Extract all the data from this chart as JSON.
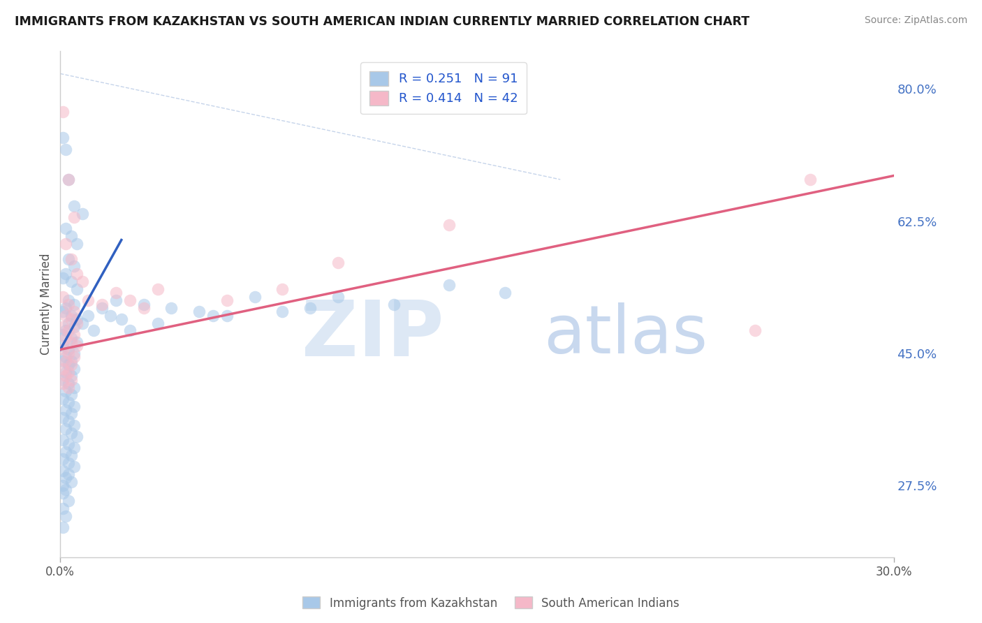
{
  "title": "IMMIGRANTS FROM KAZAKHSTAN VS SOUTH AMERICAN INDIAN CURRENTLY MARRIED CORRELATION CHART",
  "source": "Source: ZipAtlas.com",
  "xlabel_bottom_left": "0.0%",
  "xlabel_bottom_right": "30.0%",
  "ylabel": "Currently Married",
  "y_ticks": [
    "27.5%",
    "45.0%",
    "62.5%",
    "80.0%"
  ],
  "y_tick_vals": [
    0.275,
    0.45,
    0.625,
    0.8
  ],
  "legend1_color": "#a8c8e8",
  "legend2_color": "#f5b8c8",
  "line1_color": "#3060c0",
  "line2_color": "#e06080",
  "diagonal_color": "#c0d0e8",
  "watermark_zip": "ZIP",
  "watermark_atlas": "atlas",
  "background_color": "#ffffff",
  "grid_color": "#dde8f0",
  "legend_label1": "Immigrants from Kazakhstan",
  "legend_label2": "South American Indians",
  "xlim": [
    0.0,
    0.3
  ],
  "ylim": [
    0.18,
    0.85
  ],
  "blue_scatter": [
    [
      0.001,
      0.735
    ],
    [
      0.002,
      0.72
    ],
    [
      0.003,
      0.68
    ],
    [
      0.005,
      0.645
    ],
    [
      0.008,
      0.635
    ],
    [
      0.002,
      0.615
    ],
    [
      0.004,
      0.605
    ],
    [
      0.006,
      0.595
    ],
    [
      0.003,
      0.575
    ],
    [
      0.005,
      0.565
    ],
    [
      0.002,
      0.555
    ],
    [
      0.001,
      0.55
    ],
    [
      0.004,
      0.545
    ],
    [
      0.006,
      0.535
    ],
    [
      0.003,
      0.52
    ],
    [
      0.005,
      0.515
    ],
    [
      0.002,
      0.51
    ],
    [
      0.001,
      0.505
    ],
    [
      0.004,
      0.5
    ],
    [
      0.006,
      0.495
    ],
    [
      0.003,
      0.49
    ],
    [
      0.005,
      0.485
    ],
    [
      0.002,
      0.48
    ],
    [
      0.001,
      0.475
    ],
    [
      0.004,
      0.47
    ],
    [
      0.006,
      0.465
    ],
    [
      0.001,
      0.46
    ],
    [
      0.003,
      0.455
    ],
    [
      0.005,
      0.45
    ],
    [
      0.002,
      0.445
    ],
    [
      0.004,
      0.44
    ],
    [
      0.001,
      0.44
    ],
    [
      0.003,
      0.435
    ],
    [
      0.005,
      0.43
    ],
    [
      0.002,
      0.425
    ],
    [
      0.004,
      0.42
    ],
    [
      0.001,
      0.415
    ],
    [
      0.003,
      0.41
    ],
    [
      0.005,
      0.405
    ],
    [
      0.002,
      0.4
    ],
    [
      0.004,
      0.395
    ],
    [
      0.001,
      0.39
    ],
    [
      0.003,
      0.385
    ],
    [
      0.005,
      0.38
    ],
    [
      0.002,
      0.375
    ],
    [
      0.004,
      0.37
    ],
    [
      0.001,
      0.365
    ],
    [
      0.003,
      0.36
    ],
    [
      0.005,
      0.355
    ],
    [
      0.002,
      0.35
    ],
    [
      0.004,
      0.345
    ],
    [
      0.006,
      0.34
    ],
    [
      0.001,
      0.335
    ],
    [
      0.003,
      0.33
    ],
    [
      0.005,
      0.325
    ],
    [
      0.002,
      0.32
    ],
    [
      0.004,
      0.315
    ],
    [
      0.001,
      0.31
    ],
    [
      0.003,
      0.305
    ],
    [
      0.005,
      0.3
    ],
    [
      0.001,
      0.295
    ],
    [
      0.003,
      0.29
    ],
    [
      0.002,
      0.285
    ],
    [
      0.004,
      0.28
    ],
    [
      0.001,
      0.275
    ],
    [
      0.002,
      0.27
    ],
    [
      0.001,
      0.265
    ],
    [
      0.003,
      0.255
    ],
    [
      0.001,
      0.245
    ],
    [
      0.002,
      0.235
    ],
    [
      0.001,
      0.22
    ],
    [
      0.008,
      0.49
    ],
    [
      0.01,
      0.5
    ],
    [
      0.012,
      0.48
    ],
    [
      0.015,
      0.51
    ],
    [
      0.018,
      0.5
    ],
    [
      0.02,
      0.52
    ],
    [
      0.022,
      0.495
    ],
    [
      0.025,
      0.48
    ],
    [
      0.03,
      0.515
    ],
    [
      0.035,
      0.49
    ],
    [
      0.04,
      0.51
    ],
    [
      0.05,
      0.505
    ],
    [
      0.055,
      0.5
    ],
    [
      0.06,
      0.5
    ],
    [
      0.07,
      0.525
    ],
    [
      0.08,
      0.505
    ],
    [
      0.09,
      0.51
    ],
    [
      0.1,
      0.525
    ],
    [
      0.12,
      0.515
    ],
    [
      0.14,
      0.54
    ],
    [
      0.16,
      0.53
    ]
  ],
  "pink_scatter": [
    [
      0.001,
      0.77
    ],
    [
      0.003,
      0.68
    ],
    [
      0.005,
      0.63
    ],
    [
      0.002,
      0.595
    ],
    [
      0.004,
      0.575
    ],
    [
      0.006,
      0.555
    ],
    [
      0.008,
      0.545
    ],
    [
      0.001,
      0.525
    ],
    [
      0.003,
      0.515
    ],
    [
      0.005,
      0.505
    ],
    [
      0.002,
      0.5
    ],
    [
      0.004,
      0.495
    ],
    [
      0.006,
      0.49
    ],
    [
      0.001,
      0.485
    ],
    [
      0.003,
      0.48
    ],
    [
      0.005,
      0.475
    ],
    [
      0.002,
      0.47
    ],
    [
      0.004,
      0.465
    ],
    [
      0.006,
      0.46
    ],
    [
      0.001,
      0.455
    ],
    [
      0.003,
      0.45
    ],
    [
      0.005,
      0.445
    ],
    [
      0.002,
      0.44
    ],
    [
      0.004,
      0.435
    ],
    [
      0.001,
      0.43
    ],
    [
      0.003,
      0.425
    ],
    [
      0.002,
      0.42
    ],
    [
      0.004,
      0.415
    ],
    [
      0.001,
      0.41
    ],
    [
      0.003,
      0.405
    ],
    [
      0.01,
      0.52
    ],
    [
      0.015,
      0.515
    ],
    [
      0.02,
      0.53
    ],
    [
      0.025,
      0.52
    ],
    [
      0.03,
      0.51
    ],
    [
      0.035,
      0.535
    ],
    [
      0.06,
      0.52
    ],
    [
      0.08,
      0.535
    ],
    [
      0.1,
      0.57
    ],
    [
      0.14,
      0.62
    ],
    [
      0.25,
      0.48
    ],
    [
      0.27,
      0.68
    ]
  ],
  "blue_line_x": [
    0.0,
    0.022
  ],
  "blue_line_y": [
    0.455,
    0.6
  ],
  "pink_line_x": [
    0.0,
    0.3
  ],
  "pink_line_y": [
    0.455,
    0.685
  ]
}
